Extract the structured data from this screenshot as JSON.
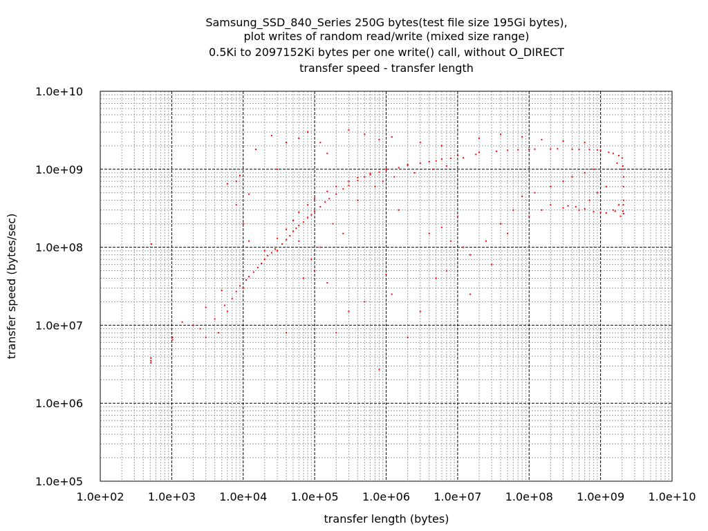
{
  "chart_data": {
    "type": "scatter",
    "title": [
      "Samsung_SSD_840_Series 250G bytes(test file size 195Gi bytes),",
      "plot writes of random read/write (mixed size range)",
      "0.5Ki to 2097152Ki bytes per one write() call, without O_DIRECT",
      "transfer speed - transfer length"
    ],
    "xlabel": "transfer length (bytes)",
    "ylabel": "transfer speed (bytes/sec)",
    "x_scale": "log",
    "y_scale": "log",
    "xlim": [
      100,
      10000000000
    ],
    "ylim": [
      100000,
      10000000000
    ],
    "x_ticks": [
      {
        "value": 100,
        "label": "1.0e+02"
      },
      {
        "value": 1000,
        "label": "1.0e+03"
      },
      {
        "value": 10000,
        "label": "1.0e+04"
      },
      {
        "value": 100000,
        "label": "1.0e+05"
      },
      {
        "value": 1000000,
        "label": "1.0e+06"
      },
      {
        "value": 10000000,
        "label": "1.0e+07"
      },
      {
        "value": 100000000,
        "label": "1.0e+08"
      },
      {
        "value": 1000000000,
        "label": "1.0e+09"
      },
      {
        "value": 10000000000,
        "label": "1.0e+10"
      }
    ],
    "y_ticks": [
      {
        "value": 100000,
        "label": "1.0e+05"
      },
      {
        "value": 1000000,
        "label": "1.0e+06"
      },
      {
        "value": 10000000,
        "label": "1.0e+07"
      },
      {
        "value": 100000000,
        "label": "1.0e+08"
      },
      {
        "value": 1000000000,
        "label": "1.0e+09"
      },
      {
        "value": 10000000000,
        "label": "1.0e+10"
      }
    ],
    "grid": true,
    "legend": "none",
    "marker_color": "#ff0000",
    "series": [
      {
        "points": [
          [
            512,
            3500000
          ],
          [
            512,
            3800000
          ],
          [
            512,
            3300000
          ],
          [
            520,
            110000000
          ],
          [
            1024,
            6500000
          ],
          [
            1024,
            7000000
          ],
          [
            1400,
            11000000
          ],
          [
            2000,
            10000000
          ],
          [
            2500,
            9000000
          ],
          [
            3000,
            7000000
          ],
          [
            3000,
            17000000
          ],
          [
            4000,
            12000000
          ],
          [
            4500,
            8000000
          ],
          [
            5000,
            28000000
          ],
          [
            5500,
            18000000
          ],
          [
            6000,
            15000000
          ],
          [
            7000,
            22000000
          ],
          [
            8000,
            27000000
          ],
          [
            9000,
            32000000
          ],
          [
            10000,
            30000000
          ],
          [
            11000,
            38000000
          ],
          [
            12000,
            42000000
          ],
          [
            14000,
            48000000
          ],
          [
            16000,
            55000000
          ],
          [
            18000,
            62000000
          ],
          [
            20000,
            70000000
          ],
          [
            22000,
            78000000
          ],
          [
            25000,
            85000000
          ],
          [
            28000,
            95000000
          ],
          [
            30000,
            90000000
          ],
          [
            35000,
            110000000
          ],
          [
            40000,
            125000000
          ],
          [
            45000,
            140000000
          ],
          [
            50000,
            160000000
          ],
          [
            55000,
            175000000
          ],
          [
            60000,
            190000000
          ],
          [
            70000,
            210000000
          ],
          [
            80000,
            240000000
          ],
          [
            90000,
            260000000
          ],
          [
            100000,
            290000000
          ],
          [
            120000,
            330000000
          ],
          [
            140000,
            380000000
          ],
          [
            160000,
            420000000
          ],
          [
            200000,
            480000000
          ],
          [
            250000,
            560000000
          ],
          [
            300000,
            620000000
          ],
          [
            400000,
            720000000
          ],
          [
            500000,
            800000000
          ],
          [
            600000,
            850000000
          ],
          [
            800000,
            920000000
          ],
          [
            1000000,
            980000000
          ],
          [
            1500000,
            1050000000
          ],
          [
            2000000,
            1120000000
          ],
          [
            3000000,
            1200000000
          ],
          [
            5000000,
            1280000000
          ],
          [
            8000000,
            1380000000
          ],
          [
            10000000,
            1500000000
          ],
          [
            20000000,
            1650000000
          ],
          [
            50000000,
            1750000000
          ],
          [
            100000000,
            1800000000
          ],
          [
            200000000,
            1820000000
          ],
          [
            500000000,
            1800000000
          ],
          [
            1000000000,
            1750000000
          ],
          [
            1500000000,
            1600000000
          ],
          [
            2000000000,
            1400000000
          ],
          [
            2100000000,
            800000000
          ],
          [
            2100000000,
            400000000
          ],
          [
            2100000000,
            270000000
          ],
          [
            1000000000,
            280000000
          ],
          [
            500000000,
            300000000
          ],
          [
            300000000,
            320000000
          ],
          [
            200000000,
            350000000
          ],
          [
            20000,
            90000000
          ],
          [
            30000,
            130000000
          ],
          [
            40000,
            170000000
          ],
          [
            50000,
            220000000
          ],
          [
            60000,
            280000000
          ],
          [
            80000,
            350000000
          ],
          [
            100000,
            420000000
          ],
          [
            150000,
            520000000
          ],
          [
            200000,
            600000000
          ],
          [
            300000,
            700000000
          ],
          [
            400000,
            780000000
          ],
          [
            600000,
            880000000
          ],
          [
            1000000,
            1000000000
          ],
          [
            2000000,
            1150000000
          ],
          [
            4000000,
            1250000000
          ],
          [
            6000000,
            1350000000
          ],
          [
            15000,
            1800000000
          ],
          [
            25000,
            2700000000
          ],
          [
            60000,
            2500000000
          ],
          [
            80000,
            3000000000
          ],
          [
            120000,
            2200000000
          ],
          [
            150000,
            1600000000
          ],
          [
            300000,
            3200000000
          ],
          [
            500000,
            2800000000
          ],
          [
            800000,
            2400000000
          ],
          [
            1200000,
            2600000000
          ],
          [
            3000000,
            2200000000
          ],
          [
            6000000,
            2000000000
          ],
          [
            20000000,
            2500000000
          ],
          [
            40000000,
            2800000000
          ],
          [
            80000000,
            2600000000
          ],
          [
            150000000,
            2400000000
          ],
          [
            300000000,
            2300000000
          ],
          [
            600000000,
            2200000000
          ],
          [
            8000,
            700000000
          ],
          [
            12000,
            480000000
          ],
          [
            6000,
            650000000
          ],
          [
            9000,
            830000000
          ],
          [
            30000,
            1000000000
          ],
          [
            40000,
            2200000000
          ],
          [
            1500000,
            300000000
          ],
          [
            4000000,
            150000000
          ],
          [
            6000000,
            180000000
          ],
          [
            8000000,
            120000000
          ],
          [
            10000000,
            250000000
          ],
          [
            15000000,
            80000000
          ],
          [
            25000000,
            120000000
          ],
          [
            30000000,
            60000000
          ],
          [
            40000000,
            200000000
          ],
          [
            60000000,
            300000000
          ],
          [
            80000000,
            450000000
          ],
          [
            120000000,
            500000000
          ],
          [
            200000000,
            600000000
          ],
          [
            300000000,
            700000000
          ],
          [
            400000000,
            800000000
          ],
          [
            600000000,
            900000000
          ],
          [
            800000000,
            1000000000
          ],
          [
            1000000,
            45000000
          ],
          [
            1200000,
            25000000
          ],
          [
            2000000,
            7000000
          ],
          [
            800000,
            2700000
          ],
          [
            500000,
            20000000
          ],
          [
            300000,
            15000000
          ],
          [
            200000,
            8000000
          ],
          [
            150000,
            35000000
          ],
          [
            100000,
            50000000
          ],
          [
            70000,
            40000000
          ],
          [
            40000,
            8000000
          ],
          [
            15000000,
            25000000
          ],
          [
            5000000,
            40000000
          ],
          [
            3000000,
            15000000
          ],
          [
            7000000,
            50000000
          ],
          [
            12000000,
            100000000
          ],
          [
            50000000,
            150000000
          ],
          [
            100000000,
            250000000
          ],
          [
            150000000,
            300000000
          ],
          [
            700000000,
            400000000
          ],
          [
            900000000,
            500000000
          ],
          [
            1200000000,
            600000000
          ],
          [
            1500000000,
            300000000
          ],
          [
            1800000000,
            350000000
          ],
          [
            1900000000,
            250000000
          ],
          [
            2000000000,
            1000000000
          ],
          [
            1700000000,
            1200000000
          ],
          [
            10000,
            200000000
          ],
          [
            12000,
            120000000
          ],
          [
            8000,
            350000000
          ],
          [
            60000,
            120000000
          ],
          [
            90000,
            70000000
          ],
          [
            120000,
            100000000
          ],
          [
            180000,
            200000000
          ],
          [
            250000,
            150000000
          ],
          [
            400000,
            400000000
          ],
          [
            700000,
            600000000
          ],
          [
            900000,
            700000000
          ],
          [
            1300000,
            800000000
          ],
          [
            2500000,
            900000000
          ],
          [
            4500000,
            1000000000
          ],
          [
            7000000,
            1100000000
          ],
          [
            12000000,
            1400000000
          ],
          [
            18000000,
            1550000000
          ],
          [
            35000000,
            1700000000
          ],
          [
            70000000,
            1780000000
          ],
          [
            120000000,
            1810000000
          ],
          [
            250000000,
            1830000000
          ],
          [
            400000000,
            1810000000
          ],
          [
            700000000,
            1790000000
          ],
          [
            900000000,
            1770000000
          ],
          [
            1300000000,
            1650000000
          ],
          [
            1800000000,
            1500000000
          ],
          [
            2050000000,
            1100000000
          ],
          [
            2090000000,
            600000000
          ],
          [
            2080000000,
            350000000
          ],
          [
            2060000000,
            290000000
          ],
          [
            1600000000,
            290000000
          ],
          [
            1200000000,
            275000000
          ],
          [
            800000000,
            285000000
          ],
          [
            600000000,
            310000000
          ],
          [
            450000000,
            330000000
          ],
          [
            350000000,
            340000000
          ]
        ]
      }
    ]
  }
}
